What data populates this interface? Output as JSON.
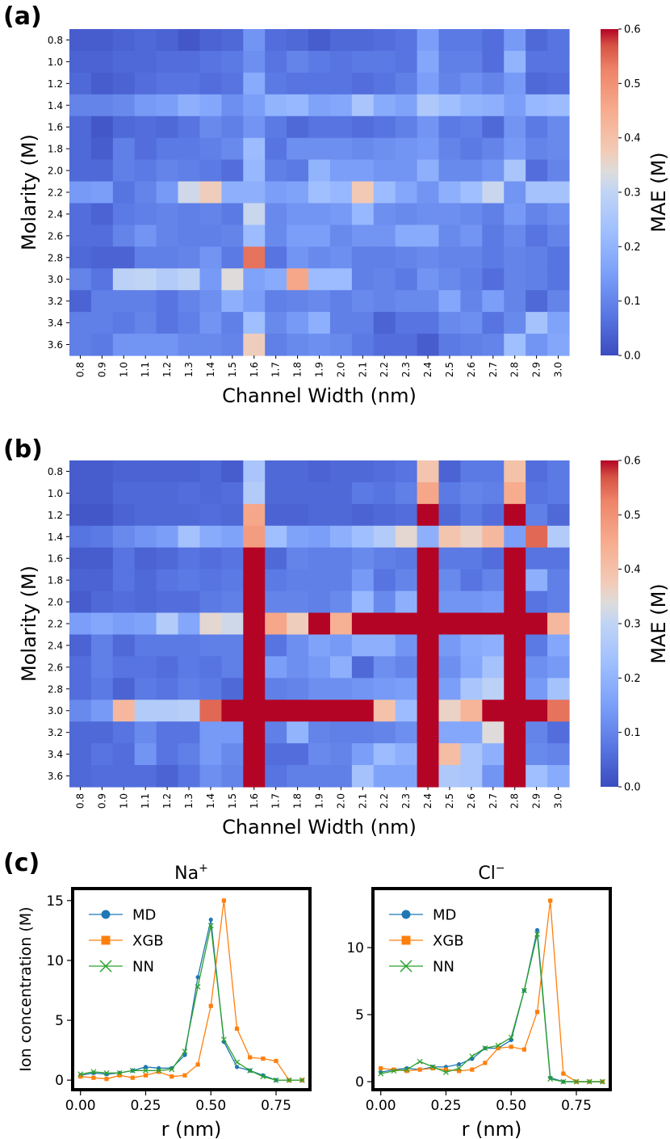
{
  "figure_labels": {
    "a": "(a)",
    "b": "(b)",
    "c": "(c)"
  },
  "chart_data": [
    {
      "type": "heatmap",
      "panel": "(a)",
      "xlabel": "Channel Width (nm)",
      "ylabel": "Molarity (M)",
      "colorbar_label": "MAE (M)",
      "colorbar_ticks": [
        "0.0",
        "0.1",
        "0.2",
        "0.3",
        "0.4",
        "0.5",
        "0.6"
      ],
      "vmin": 0.0,
      "vmax": 0.6,
      "x_categories": [
        "0.8",
        "0.9",
        "1.0",
        "1.1",
        "1.2",
        "1.3",
        "1.4",
        "1.5",
        "1.6",
        "1.7",
        "1.8",
        "1.9",
        "2.0",
        "2.1",
        "2.2",
        "2.3",
        "2.4",
        "2.5",
        "2.6",
        "2.7",
        "2.8",
        "2.9",
        "3.0"
      ],
      "y_categories": [
        "0.8",
        "1.0",
        "1.2",
        "1.4",
        "1.6",
        "1.8",
        "2.0",
        "2.2",
        "2.4",
        "2.6",
        "2.8",
        "3.0",
        "3.2",
        "3.4",
        "3.6"
      ],
      "highlighted_x": [
        "1.6",
        "2.4",
        "2.8"
      ],
      "highlighted_y": [
        "1.4",
        "2.2",
        "3.0"
      ],
      "values": [
        [
          0.03,
          0.03,
          0.04,
          0.05,
          0.04,
          0.02,
          0.04,
          0.05,
          0.13,
          0.06,
          0.05,
          0.03,
          0.05,
          0.05,
          0.06,
          0.07,
          0.15,
          0.08,
          0.08,
          0.06,
          0.14,
          0.05,
          0.07
        ],
        [
          0.04,
          0.04,
          0.05,
          0.05,
          0.06,
          0.06,
          0.07,
          0.08,
          0.12,
          0.07,
          0.1,
          0.08,
          0.07,
          0.08,
          0.08,
          0.07,
          0.17,
          0.09,
          0.09,
          0.06,
          0.2,
          0.07,
          0.07
        ],
        [
          0.05,
          0.03,
          0.04,
          0.06,
          0.07,
          0.07,
          0.06,
          0.07,
          0.18,
          0.08,
          0.07,
          0.07,
          0.07,
          0.06,
          0.07,
          0.09,
          0.15,
          0.1,
          0.12,
          0.1,
          0.14,
          0.05,
          0.06
        ],
        [
          0.1,
          0.1,
          0.11,
          0.14,
          0.15,
          0.19,
          0.17,
          0.12,
          0.15,
          0.2,
          0.21,
          0.16,
          0.17,
          0.25,
          0.18,
          0.16,
          0.26,
          0.23,
          0.2,
          0.19,
          0.15,
          0.21,
          0.22
        ],
        [
          0.05,
          0.02,
          0.05,
          0.06,
          0.05,
          0.07,
          0.11,
          0.09,
          0.13,
          0.08,
          0.05,
          0.07,
          0.07,
          0.06,
          0.07,
          0.09,
          0.13,
          0.08,
          0.09,
          0.05,
          0.13,
          0.08,
          0.11
        ],
        [
          0.05,
          0.03,
          0.09,
          0.06,
          0.08,
          0.08,
          0.09,
          0.11,
          0.22,
          0.07,
          0.12,
          0.12,
          0.12,
          0.11,
          0.12,
          0.13,
          0.14,
          0.1,
          0.08,
          0.1,
          0.14,
          0.1,
          0.11
        ],
        [
          0.05,
          0.05,
          0.09,
          0.08,
          0.1,
          0.09,
          0.08,
          0.06,
          0.21,
          0.09,
          0.08,
          0.2,
          0.15,
          0.15,
          0.13,
          0.13,
          0.19,
          0.11,
          0.11,
          0.13,
          0.25,
          0.06,
          0.1
        ],
        [
          0.14,
          0.15,
          0.07,
          0.1,
          0.14,
          0.32,
          0.37,
          0.19,
          0.19,
          0.15,
          0.16,
          0.23,
          0.21,
          0.38,
          0.22,
          0.17,
          0.13,
          0.19,
          0.23,
          0.31,
          0.13,
          0.24,
          0.24
        ],
        [
          0.06,
          0.04,
          0.08,
          0.09,
          0.1,
          0.09,
          0.1,
          0.08,
          0.31,
          0.11,
          0.13,
          0.13,
          0.14,
          0.21,
          0.12,
          0.11,
          0.12,
          0.12,
          0.11,
          0.09,
          0.14,
          0.1,
          0.12
        ],
        [
          0.06,
          0.06,
          0.1,
          0.13,
          0.1,
          0.09,
          0.09,
          0.1,
          0.22,
          0.11,
          0.15,
          0.15,
          0.11,
          0.13,
          0.13,
          0.18,
          0.18,
          0.11,
          0.13,
          0.08,
          0.11,
          0.07,
          0.1
        ],
        [
          0.05,
          0.04,
          0.04,
          0.09,
          0.09,
          0.1,
          0.13,
          0.08,
          0.54,
          0.07,
          0.13,
          0.11,
          0.12,
          0.09,
          0.09,
          0.1,
          0.11,
          0.1,
          0.1,
          0.08,
          0.1,
          0.09,
          0.07
        ],
        [
          0.1,
          0.07,
          0.29,
          0.3,
          0.27,
          0.29,
          0.14,
          0.34,
          0.16,
          0.18,
          0.46,
          0.22,
          0.22,
          0.09,
          0.1,
          0.08,
          0.13,
          0.11,
          0.09,
          0.06,
          0.1,
          0.09,
          0.07
        ],
        [
          0.04,
          0.09,
          0.09,
          0.09,
          0.07,
          0.1,
          0.12,
          0.19,
          0.15,
          0.09,
          0.1,
          0.11,
          0.09,
          0.11,
          0.1,
          0.11,
          0.11,
          0.17,
          0.1,
          0.15,
          0.1,
          0.05,
          0.1
        ],
        [
          0.09,
          0.09,
          0.08,
          0.1,
          0.07,
          0.09,
          0.13,
          0.09,
          0.23,
          0.11,
          0.14,
          0.19,
          0.09,
          0.09,
          0.04,
          0.07,
          0.07,
          0.11,
          0.12,
          0.07,
          0.11,
          0.24,
          0.16
        ],
        [
          0.09,
          0.08,
          0.13,
          0.13,
          0.13,
          0.11,
          0.11,
          0.1,
          0.37,
          0.09,
          0.11,
          0.12,
          0.11,
          0.08,
          0.06,
          0.06,
          0.03,
          0.08,
          0.09,
          0.1,
          0.23,
          0.13,
          0.17
        ]
      ]
    },
    {
      "type": "heatmap",
      "panel": "(b)",
      "xlabel": "Channel Width (nm)",
      "ylabel": "Molarity (M)",
      "colorbar_label": "MAE (M)",
      "colorbar_ticks": [
        "0.0",
        "0.1",
        "0.2",
        "0.3",
        "0.4",
        "0.5",
        "0.6"
      ],
      "vmin": 0.0,
      "vmax": 0.6,
      "x_categories": [
        "0.8",
        "0.9",
        "1.0",
        "1.1",
        "1.2",
        "1.3",
        "1.4",
        "1.5",
        "1.6",
        "1.7",
        "1.8",
        "1.9",
        "2.0",
        "2.1",
        "2.2",
        "2.3",
        "2.4",
        "2.5",
        "2.6",
        "2.7",
        "2.8",
        "2.9",
        "3.0"
      ],
      "y_categories": [
        "0.8",
        "1.0",
        "1.2",
        "1.4",
        "1.6",
        "1.8",
        "2.0",
        "2.2",
        "2.4",
        "2.6",
        "2.8",
        "3.0",
        "3.2",
        "3.4",
        "3.6"
      ],
      "highlighted_x": [
        "1.6",
        "2.4",
        "2.8"
      ],
      "highlighted_y": [
        "1.4",
        "2.2",
        "3.0"
      ],
      "values": [
        [
          0.03,
          0.03,
          0.04,
          0.04,
          0.04,
          0.04,
          0.05,
          0.03,
          0.25,
          0.05,
          0.05,
          0.04,
          0.05,
          0.05,
          0.06,
          0.07,
          0.39,
          0.04,
          0.08,
          0.08,
          0.4,
          0.06,
          0.08
        ],
        [
          0.03,
          0.03,
          0.05,
          0.05,
          0.05,
          0.06,
          0.05,
          0.06,
          0.27,
          0.05,
          0.05,
          0.05,
          0.05,
          0.08,
          0.07,
          0.09,
          0.46,
          0.08,
          0.1,
          0.09,
          0.45,
          0.07,
          0.08
        ],
        [
          0.02,
          0.02,
          0.04,
          0.05,
          0.05,
          0.05,
          0.06,
          0.05,
          0.46,
          0.04,
          0.04,
          0.05,
          0.05,
          0.04,
          0.05,
          0.06,
          0.6,
          0.05,
          0.08,
          0.06,
          0.6,
          0.09,
          0.05
        ],
        [
          0.07,
          0.08,
          0.11,
          0.13,
          0.15,
          0.24,
          0.18,
          0.16,
          0.48,
          0.23,
          0.16,
          0.15,
          0.19,
          0.23,
          0.27,
          0.35,
          0.19,
          0.39,
          0.36,
          0.42,
          0.15,
          0.55,
          0.27
        ],
        [
          0.03,
          0.03,
          0.07,
          0.04,
          0.05,
          0.07,
          0.06,
          0.07,
          0.6,
          0.05,
          0.1,
          0.09,
          0.09,
          0.11,
          0.09,
          0.08,
          0.6,
          0.08,
          0.08,
          0.06,
          0.6,
          0.07,
          0.07
        ],
        [
          0.04,
          0.04,
          0.07,
          0.05,
          0.07,
          0.08,
          0.07,
          0.08,
          0.6,
          0.08,
          0.09,
          0.09,
          0.09,
          0.14,
          0.07,
          0.1,
          0.6,
          0.11,
          0.07,
          0.1,
          0.6,
          0.19,
          0.09
        ],
        [
          0.03,
          0.05,
          0.06,
          0.05,
          0.06,
          0.06,
          0.08,
          0.09,
          0.6,
          0.1,
          0.1,
          0.09,
          0.11,
          0.21,
          0.11,
          0.19,
          0.6,
          0.13,
          0.13,
          0.14,
          0.6,
          0.07,
          0.09
        ],
        [
          0.15,
          0.17,
          0.15,
          0.16,
          0.27,
          0.17,
          0.35,
          0.32,
          0.6,
          0.46,
          0.37,
          0.6,
          0.44,
          0.6,
          0.6,
          0.6,
          0.6,
          0.6,
          0.6,
          0.6,
          0.6,
          0.6,
          0.42
        ],
        [
          0.04,
          0.09,
          0.05,
          0.08,
          0.08,
          0.08,
          0.09,
          0.09,
          0.6,
          0.07,
          0.12,
          0.16,
          0.14,
          0.19,
          0.19,
          0.13,
          0.6,
          0.14,
          0.18,
          0.19,
          0.6,
          0.08,
          0.17
        ],
        [
          0.06,
          0.09,
          0.07,
          0.07,
          0.06,
          0.08,
          0.07,
          0.09,
          0.6,
          0.15,
          0.12,
          0.14,
          0.19,
          0.05,
          0.12,
          0.1,
          0.6,
          0.12,
          0.17,
          0.24,
          0.6,
          0.12,
          0.14
        ],
        [
          0.06,
          0.08,
          0.04,
          0.08,
          0.07,
          0.09,
          0.08,
          0.05,
          0.6,
          0.09,
          0.1,
          0.12,
          0.12,
          0.13,
          0.14,
          0.15,
          0.6,
          0.15,
          0.25,
          0.29,
          0.6,
          0.14,
          0.24
        ],
        [
          0.11,
          0.14,
          0.42,
          0.27,
          0.27,
          0.28,
          0.55,
          0.6,
          0.6,
          0.6,
          0.6,
          0.6,
          0.6,
          0.6,
          0.4,
          0.22,
          0.6,
          0.36,
          0.43,
          0.6,
          0.6,
          0.6,
          0.54
        ],
        [
          0.05,
          0.05,
          0.07,
          0.11,
          0.07,
          0.07,
          0.14,
          0.14,
          0.6,
          0.09,
          0.2,
          0.1,
          0.09,
          0.09,
          0.1,
          0.12,
          0.6,
          0.17,
          0.17,
          0.34,
          0.6,
          0.1,
          0.06
        ],
        [
          0.05,
          0.07,
          0.06,
          0.13,
          0.07,
          0.09,
          0.14,
          0.11,
          0.6,
          0.06,
          0.06,
          0.11,
          0.1,
          0.15,
          0.22,
          0.19,
          0.6,
          0.41,
          0.25,
          0.19,
          0.6,
          0.11,
          0.1
        ],
        [
          0.05,
          0.06,
          0.06,
          0.06,
          0.04,
          0.07,
          0.12,
          0.1,
          0.6,
          0.07,
          0.09,
          0.09,
          0.09,
          0.24,
          0.16,
          0.16,
          0.6,
          0.26,
          0.25,
          0.13,
          0.6,
          0.23,
          0.18
        ]
      ]
    },
    {
      "type": "line",
      "panel": "(c)",
      "title": "Na+",
      "title_base": "Na",
      "title_sup": "+",
      "xlabel": "r (nm)",
      "ylabel": "Ion concentration (M)",
      "xlim": [
        -0.03,
        0.88
      ],
      "ylim": [
        -0.8,
        16.0
      ],
      "xticks": [
        0.0,
        0.25,
        0.5,
        0.75
      ],
      "xtick_labels": [
        "0.00",
        "0.25",
        "0.50",
        "0.75"
      ],
      "yticks": [
        0,
        5,
        10,
        15
      ],
      "ytick_labels": [
        "0",
        "5",
        "10",
        "15"
      ],
      "x": [
        0.0,
        0.05,
        0.1,
        0.15,
        0.2,
        0.25,
        0.3,
        0.35,
        0.4,
        0.45,
        0.5,
        0.55,
        0.6,
        0.65,
        0.7,
        0.75,
        0.8,
        0.85
      ],
      "series": [
        {
          "name": "MD",
          "color": "#1f77b4",
          "marker": "circle",
          "values": [
            0.4,
            0.6,
            0.5,
            0.6,
            0.8,
            1.1,
            1.0,
            1.0,
            2.1,
            8.6,
            13.4,
            3.2,
            1.1,
            0.8,
            0.4,
            0.0,
            0.0,
            0.0
          ]
        },
        {
          "name": "XGB",
          "color": "#ff7f0e",
          "marker": "square",
          "values": [
            0.3,
            0.2,
            0.1,
            0.4,
            0.2,
            0.4,
            0.7,
            0.3,
            0.4,
            1.3,
            6.2,
            15.0,
            4.3,
            1.9,
            1.8,
            1.6,
            0.0,
            0.0
          ]
        },
        {
          "name": "NN",
          "color": "#2ca02c",
          "marker": "x",
          "values": [
            0.5,
            0.7,
            0.6,
            0.6,
            0.8,
            0.8,
            0.8,
            0.9,
            2.4,
            7.8,
            12.9,
            3.4,
            1.5,
            0.8,
            0.3,
            0.0,
            0.0,
            0.0
          ]
        }
      ]
    },
    {
      "type": "line",
      "panel": "(c)",
      "title": "Cl−",
      "title_base": "Cl",
      "title_sup": "−",
      "xlabel": "r (nm)",
      "ylabel": "",
      "xlim": [
        -0.03,
        0.88
      ],
      "ylim": [
        -0.6,
        14.4
      ],
      "xticks": [
        0.0,
        0.25,
        0.5,
        0.75
      ],
      "xtick_labels": [
        "0.00",
        "0.25",
        "0.50",
        "0.75"
      ],
      "yticks": [
        0,
        5,
        10
      ],
      "ytick_labels": [
        "0",
        "5",
        "10"
      ],
      "x": [
        0.0,
        0.05,
        0.1,
        0.15,
        0.2,
        0.25,
        0.3,
        0.35,
        0.4,
        0.45,
        0.5,
        0.55,
        0.6,
        0.65,
        0.7,
        0.75,
        0.8,
        0.85
      ],
      "series": [
        {
          "name": "MD",
          "color": "#1f77b4",
          "marker": "circle",
          "values": [
            0.7,
            0.9,
            1.0,
            0.9,
            1.1,
            1.1,
            1.3,
            1.7,
            2.5,
            2.5,
            3.1,
            6.8,
            11.3,
            0.3,
            0.0,
            0.0,
            0.0,
            0.0
          ]
        },
        {
          "name": "XGB",
          "color": "#ff7f0e",
          "marker": "square",
          "values": [
            1.0,
            0.9,
            0.8,
            0.9,
            1.0,
            0.9,
            0.8,
            0.9,
            1.4,
            2.5,
            2.6,
            2.4,
            5.2,
            13.5,
            0.6,
            0.0,
            0.0,
            0.0
          ]
        },
        {
          "name": "NN",
          "color": "#2ca02c",
          "marker": "x",
          "values": [
            0.6,
            0.8,
            0.9,
            1.5,
            1.1,
            0.7,
            1.0,
            1.9,
            2.5,
            2.7,
            3.3,
            6.8,
            11.0,
            0.2,
            0.0,
            0.0,
            0.0,
            0.0
          ]
        }
      ]
    }
  ]
}
